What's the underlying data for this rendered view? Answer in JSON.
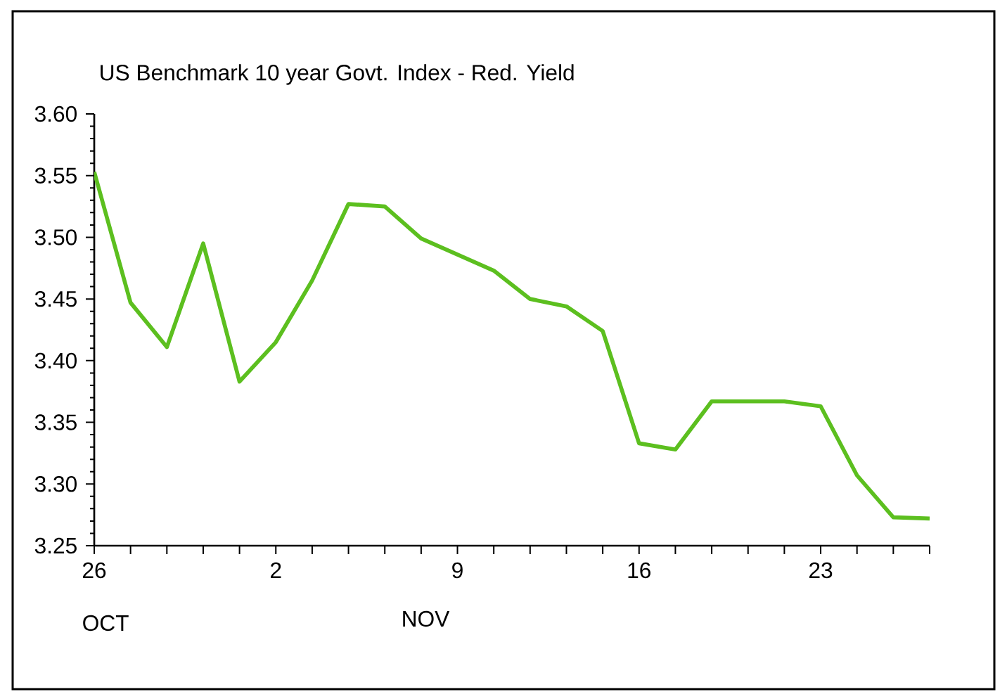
{
  "chart_data": {
    "type": "line",
    "title": "US Benchmark 10 year Govt. Index - Red. Yield",
    "categories": [
      "26",
      null,
      null,
      null,
      null,
      "2",
      null,
      null,
      null,
      null,
      "9",
      null,
      null,
      null,
      null,
      "16",
      null,
      null,
      null,
      null,
      "23",
      null,
      null,
      null
    ],
    "series": [
      {
        "color": "#5cbf1f",
        "values": [
          3.553,
          3.447,
          3.411,
          3.495,
          3.383,
          3.415,
          3.465,
          3.527,
          3.525,
          3.499,
          3.486,
          3.473,
          3.45,
          3.444,
          3.424,
          3.333,
          3.328,
          3.367,
          3.367,
          3.367,
          3.363,
          3.307,
          3.273,
          3.272
        ]
      }
    ],
    "ylim": [
      3.25,
      3.6
    ],
    "yticks": [
      {
        "value": 3.25,
        "label": "3.25"
      },
      {
        "value": 3.3,
        "label": "3.30"
      },
      {
        "value": 3.35,
        "label": "3.35"
      },
      {
        "value": 3.4,
        "label": "3.40"
      },
      {
        "value": 3.45,
        "label": "3.45"
      },
      {
        "value": 3.5,
        "label": "3.50"
      },
      {
        "value": 3.55,
        "label": "3.55"
      },
      {
        "value": 3.6,
        "label": "3.60"
      }
    ],
    "annotations": [
      "OCT",
      "NOV"
    ],
    "marker": "none",
    "line_style": "solid"
  }
}
